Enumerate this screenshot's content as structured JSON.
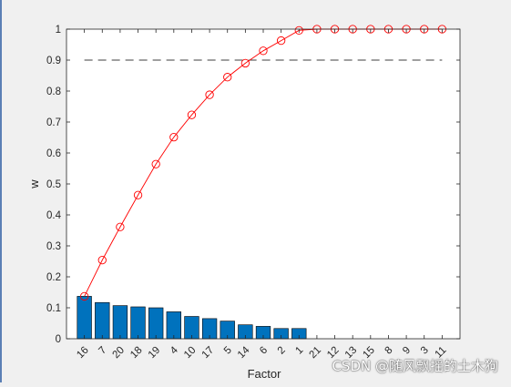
{
  "chart_data": {
    "type": "bar",
    "title": "",
    "xlabel": "Factor",
    "ylabel": "w",
    "ylim": [
      0,
      1
    ],
    "yticks": [
      "0",
      "0.1",
      "0.2",
      "0.3",
      "0.4",
      "0.5",
      "0.6",
      "0.7",
      "0.8",
      "0.9",
      "1"
    ],
    "categories": [
      "16",
      "7",
      "20",
      "18",
      "19",
      "4",
      "10",
      "17",
      "5",
      "14",
      "6",
      "2",
      "1",
      "21",
      "12",
      "13",
      "15",
      "8",
      "9",
      "3",
      "11"
    ],
    "series": [
      {
        "type": "bar",
        "color": "#0072bd",
        "values": [
          0.137,
          0.117,
          0.107,
          0.103,
          0.1,
          0.087,
          0.072,
          0.065,
          0.057,
          0.045,
          0.04,
          0.033,
          0.033,
          0,
          0,
          0,
          0,
          0,
          0,
          0,
          0
        ]
      },
      {
        "type": "line",
        "color": "#ff0000",
        "marker": "circle",
        "values": [
          0.137,
          0.254,
          0.361,
          0.464,
          0.564,
          0.651,
          0.723,
          0.788,
          0.845,
          0.89,
          0.93,
          0.963,
          0.996,
          1,
          1,
          1,
          1,
          1,
          1,
          1,
          1
        ]
      }
    ],
    "threshold": {
      "value": 0.9,
      "style": "dashed",
      "color": "#000000"
    },
    "grid": false,
    "legend": "none"
  },
  "watermark": "CSDN @随风飘摇的土木狗"
}
